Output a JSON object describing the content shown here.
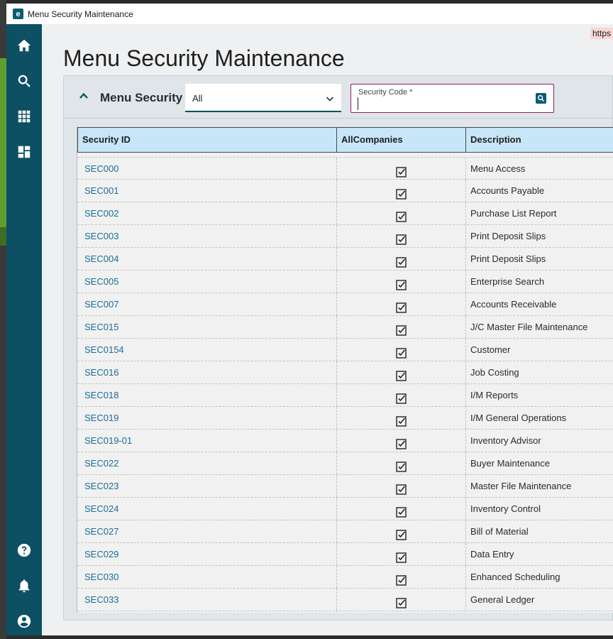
{
  "window": {
    "title": "Menu Security Maintenance",
    "app_icon": "e"
  },
  "url_chip": "https",
  "page": {
    "title": "Menu Security Maintenance"
  },
  "sidebar": {
    "items": [
      {
        "icon": "home-icon"
      },
      {
        "icon": "search-icon"
      },
      {
        "icon": "apps-grid-icon"
      },
      {
        "icon": "dashboard-icon"
      },
      {
        "icon": "help-icon"
      },
      {
        "icon": "bell-icon"
      },
      {
        "icon": "account-icon"
      }
    ]
  },
  "panel": {
    "label": "Menu Security",
    "filter": {
      "value": "All"
    },
    "security_code": {
      "label": "Security Code *",
      "value": ""
    }
  },
  "grid": {
    "columns": [
      "Security ID",
      "AllCompanies",
      "Description"
    ],
    "rows": [
      {
        "id": "SEC000",
        "all": true,
        "desc": "Menu Access"
      },
      {
        "id": "SEC001",
        "all": true,
        "desc": "Accounts Payable"
      },
      {
        "id": "SEC002",
        "all": true,
        "desc": "Purchase List Report"
      },
      {
        "id": "SEC003",
        "all": true,
        "desc": "Print Deposit Slips"
      },
      {
        "id": "SEC004",
        "all": true,
        "desc": "Print Deposit Slips"
      },
      {
        "id": "SEC005",
        "all": true,
        "desc": "Enterprise Search"
      },
      {
        "id": "SEC007",
        "all": true,
        "desc": "Accounts Receivable"
      },
      {
        "id": "SEC015",
        "all": true,
        "desc": "J/C Master File Maintenance"
      },
      {
        "id": "SEC0154",
        "all": true,
        "desc": "Customer"
      },
      {
        "id": "SEC016",
        "all": true,
        "desc": "Job Costing"
      },
      {
        "id": "SEC018",
        "all": true,
        "desc": "I/M Reports"
      },
      {
        "id": "SEC019",
        "all": true,
        "desc": "I/M General Operations"
      },
      {
        "id": "SEC019-01",
        "all": true,
        "desc": "Inventory Advisor"
      },
      {
        "id": "SEC022",
        "all": true,
        "desc": "Buyer Maintenance"
      },
      {
        "id": "SEC023",
        "all": true,
        "desc": "Master File Maintenance"
      },
      {
        "id": "SEC024",
        "all": true,
        "desc": "Inventory Control"
      },
      {
        "id": "SEC027",
        "all": true,
        "desc": "Bill of Material"
      },
      {
        "id": "SEC029",
        "all": true,
        "desc": "Data Entry"
      },
      {
        "id": "SEC030",
        "all": true,
        "desc": "Enhanced Scheduling"
      },
      {
        "id": "SEC033",
        "all": true,
        "desc": "General Ledger"
      }
    ]
  }
}
